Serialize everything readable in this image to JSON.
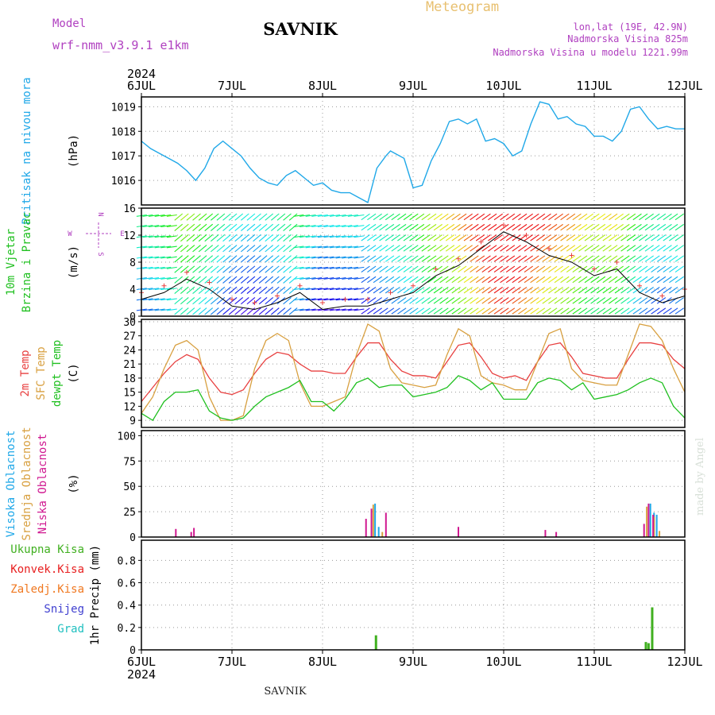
{
  "header": {
    "meteogram": "Meteogram",
    "model_label": "Model",
    "model_name": "wrf-nmm_v3.9.1 e1km",
    "station": "SAVNIK",
    "lonlat": "lon,lat (19E, 42.9N)",
    "elevation": "Nadmorska Visina 825m",
    "model_elevation": "Nadmorska Visina u modelu 1221.99m",
    "footer_station": "SAVNIK",
    "credit": "made by Angel",
    "year": "2024"
  },
  "colors": {
    "title": "#e8c070",
    "magenta": "#b040c0",
    "pressure": "#20a8e8",
    "temp2m": "#e84040",
    "sfc": "#d8a040",
    "dewpt": "#20c020",
    "high_cloud": "#20a8e8",
    "mid_cloud": "#d8a040",
    "low_cloud": "#d01890",
    "total_precip": "#40b020",
    "conv_precip": "#e82020",
    "frz_precip": "#f07820",
    "snow": "#4040d0",
    "hail": "#20c0c0"
  },
  "chart_data": [
    {
      "type": "line",
      "name": "pressure",
      "ylabels": [
        "Pritisak na nivou mora"
      ],
      "unit": "(hPa)",
      "ylim": [
        1015,
        1019.4
      ],
      "yticks": [
        1016,
        1017,
        1018,
        1019
      ],
      "x_days": [
        0,
        0.1,
        0.2,
        0.3,
        0.4,
        0.5,
        0.6,
        0.7,
        0.8,
        0.9,
        1.0,
        1.1,
        1.2,
        1.3,
        1.4,
        1.5,
        1.6,
        1.7,
        1.8,
        1.9,
        2.0,
        2.1,
        2.2,
        2.3,
        2.4,
        2.5,
        2.6,
        2.7,
        2.75,
        2.8,
        2.9,
        3.0,
        3.1,
        3.2,
        3.3,
        3.4,
        3.5,
        3.6,
        3.7,
        3.8,
        3.9,
        4.0,
        4.1,
        4.2,
        4.3,
        4.4,
        4.5,
        4.6,
        4.7,
        4.8,
        4.9,
        5.0,
        5.1,
        5.2,
        5.3,
        5.4,
        5.5,
        5.6,
        5.7,
        5.8,
        5.9,
        6.0
      ],
      "values": [
        1017.6,
        1017.3,
        1017.1,
        1016.9,
        1016.7,
        1016.4,
        1016.0,
        1016.5,
        1017.3,
        1017.6,
        1017.3,
        1017.0,
        1016.5,
        1016.1,
        1015.9,
        1015.8,
        1016.2,
        1016.4,
        1016.1,
        1015.8,
        1015.9,
        1015.6,
        1015.5,
        1015.5,
        1015.3,
        1015.1,
        1016.5,
        1017.0,
        1017.2,
        1017.1,
        1016.9,
        1015.7,
        1015.8,
        1016.8,
        1017.5,
        1018.4,
        1018.5,
        1018.3,
        1018.5,
        1017.6,
        1017.7,
        1017.5,
        1017.0,
        1017.2,
        1018.3,
        1019.2,
        1019.1,
        1018.5,
        1018.6,
        1018.3,
        1018.2,
        1017.8,
        1017.8,
        1017.6,
        1018.0,
        1018.9,
        1019.0,
        1018.5,
        1018.1,
        1018.2,
        1018.1,
        1018.1
      ]
    },
    {
      "type": "line",
      "name": "wind",
      "ylabels": [
        "10m Vjetar",
        "Brzina i Pravac"
      ],
      "unit": "(m/s)",
      "ylim": [
        0,
        16
      ],
      "yticks": [
        0,
        4,
        8,
        12,
        16
      ],
      "compass": {
        "n": "N",
        "e": "E",
        "s": "S",
        "w": "W"
      },
      "x_days": [
        0,
        0.25,
        0.5,
        0.75,
        1.0,
        1.25,
        1.5,
        1.75,
        2.0,
        2.25,
        2.5,
        2.75,
        3.0,
        3.25,
        3.5,
        3.75,
        4.0,
        4.25,
        4.5,
        4.75,
        5.0,
        5.25,
        5.5,
        5.75,
        6.0
      ],
      "speed": [
        2.5,
        3.5,
        5.5,
        4.0,
        1.5,
        1.0,
        2.0,
        3.5,
        1.0,
        1.5,
        1.5,
        2.5,
        3.5,
        6.0,
        7.5,
        10.0,
        12.5,
        11.0,
        9.0,
        8.0,
        6.0,
        7.0,
        3.5,
        2.0,
        3.0
      ]
    },
    {
      "type": "line",
      "name": "temperature",
      "ylabels": [
        "2m Temp",
        "SFC Temp",
        "dewpt Temp"
      ],
      "unit": "(C)",
      "ylim": [
        7.5,
        30.5
      ],
      "yticks": [
        9,
        12,
        15,
        18,
        21,
        24,
        27,
        30
      ],
      "x_days": [
        0,
        0.125,
        0.25,
        0.375,
        0.5,
        0.625,
        0.75,
        0.875,
        1.0,
        1.125,
        1.25,
        1.375,
        1.5,
        1.625,
        1.75,
        1.875,
        2.0,
        2.125,
        2.25,
        2.375,
        2.5,
        2.625,
        2.75,
        2.875,
        3.0,
        3.125,
        3.25,
        3.375,
        3.5,
        3.625,
        3.75,
        3.875,
        4.0,
        4.125,
        4.25,
        4.375,
        4.5,
        4.625,
        4.75,
        4.875,
        5.0,
        5.125,
        5.25,
        5.375,
        5.5,
        5.625,
        5.75,
        5.875,
        6.0
      ],
      "series": [
        {
          "name": "2m Temp",
          "values": [
            13,
            16,
            19,
            21.5,
            23,
            22,
            18,
            15,
            14.5,
            15.5,
            19,
            22,
            23.5,
            23,
            21,
            19.5,
            19.5,
            19,
            19,
            22.5,
            25.5,
            25.5,
            22,
            19.5,
            18.5,
            18.5,
            18,
            21.5,
            25,
            25.5,
            22.5,
            19,
            18,
            18.5,
            17.5,
            21.5,
            25,
            25.5,
            22.5,
            19,
            18.5,
            18,
            18,
            22,
            25.5,
            25.5,
            25,
            22,
            20
          ]
        },
        {
          "name": "SFC Temp",
          "values": [
            10.5,
            14,
            20,
            25,
            26,
            24,
            14,
            9,
            9,
            10,
            20,
            26,
            27.5,
            26,
            17,
            12,
            12,
            13,
            14,
            23,
            29.5,
            28,
            20,
            17,
            16.5,
            16,
            16.5,
            23,
            28.5,
            27,
            18.5,
            17,
            16.5,
            15.5,
            15.5,
            21.5,
            27.5,
            28.5,
            20,
            17.5,
            17,
            16.5,
            16.5,
            23,
            29.5,
            29,
            26,
            20,
            15
          ]
        },
        {
          "name": "dewpt Temp",
          "values": [
            10.5,
            9,
            13,
            15,
            15,
            15.5,
            11,
            9.5,
            9,
            9.5,
            12,
            14,
            15,
            16,
            17.5,
            13,
            13,
            11,
            13.5,
            17,
            18,
            16,
            16.5,
            16.5,
            14,
            14.5,
            15,
            16,
            18.5,
            17.5,
            15.5,
            17,
            13.5,
            13.5,
            13.5,
            17,
            18,
            17.5,
            15.5,
            17,
            13.5,
            14,
            14.5,
            15.5,
            17,
            18,
            17,
            12,
            9.5
          ]
        }
      ]
    },
    {
      "type": "bar",
      "name": "cloud",
      "ylabels": [
        "Visoka Oblacnost",
        "Srednja Oblacnost",
        "Niska Oblacnost"
      ],
      "unit": "(%)",
      "ylim": [
        0,
        105
      ],
      "yticks": [
        0,
        25,
        50,
        75,
        100
      ],
      "series": [
        {
          "name": "Visoka Oblacnost",
          "x_days": [
            2.58,
            2.62,
            5.62,
            5.66,
            5.69
          ],
          "values": [
            33,
            10,
            33,
            24,
            22
          ]
        },
        {
          "name": "Srednja Oblacnost",
          "x_days": [
            2.56,
            2.66,
            5.58,
            5.66,
            5.72
          ],
          "values": [
            32,
            5,
            30,
            20,
            6
          ]
        },
        {
          "name": "Niska Oblacnost",
          "x_days": [
            0.38,
            0.58,
            0.55,
            2.48,
            2.54,
            2.7,
            3.5,
            4.46,
            4.58,
            5.55,
            5.6,
            5.65
          ],
          "values": [
            8,
            9,
            5,
            18,
            28,
            24,
            10,
            7,
            5,
            13,
            33,
            22
          ]
        }
      ]
    },
    {
      "type": "bar",
      "name": "precip",
      "ylabels": [
        "Ukupna Kisa",
        "Konvek.Kisa",
        "Zaledj.Kisa",
        "Snijeg",
        "Grad"
      ],
      "unit": "1hr Precip (mm)",
      "ylim": [
        0,
        0.98
      ],
      "yticks": [
        0,
        0.2,
        0.4,
        0.6,
        0.8
      ],
      "ytick_labels": [
        "0",
        "0.2",
        "0.4",
        "0.6",
        "0.8"
      ],
      "series": [
        {
          "name": "Ukupna Kisa",
          "x_days": [
            2.59,
            5.57,
            5.6,
            5.64
          ],
          "values": [
            0.13,
            0.07,
            0.06,
            0.38
          ]
        }
      ]
    }
  ],
  "x_axis": {
    "x_days": [
      0,
      1,
      2,
      3,
      4,
      5,
      6
    ],
    "labels": [
      "6JUL",
      "7JUL",
      "8JUL",
      "9JUL",
      "10JUL",
      "11JUL",
      "12JUL"
    ]
  }
}
